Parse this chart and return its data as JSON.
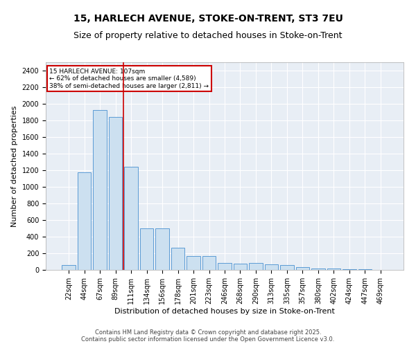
{
  "title_line1": "15, HARLECH AVENUE, STOKE-ON-TRENT, ST3 7EU",
  "title_line2": "Size of property relative to detached houses in Stoke-on-Trent",
  "xlabel": "Distribution of detached houses by size in Stoke-on-Trent",
  "ylabel": "Number of detached properties",
  "categories": [
    "22sqm",
    "44sqm",
    "67sqm",
    "89sqm",
    "111sqm",
    "134sqm",
    "156sqm",
    "178sqm",
    "201sqm",
    "223sqm",
    "246sqm",
    "268sqm",
    "290sqm",
    "313sqm",
    "335sqm",
    "357sqm",
    "380sqm",
    "402sqm",
    "424sqm",
    "447sqm",
    "469sqm"
  ],
  "values": [
    55,
    1175,
    1925,
    1840,
    1240,
    500,
    500,
    270,
    165,
    165,
    80,
    75,
    80,
    65,
    55,
    30,
    20,
    15,
    8,
    5,
    3
  ],
  "bar_color": "#cce0f0",
  "bar_edge_color": "#5b9bd5",
  "vline_x_index": 3.5,
  "vline_color": "#cc0000",
  "annotation_text": "15 HARLECH AVENUE: 107sqm\n← 62% of detached houses are smaller (4,589)\n38% of semi-detached houses are larger (2,811) →",
  "annotation_box_color": "#cc0000",
  "annotation_text_color": "#000000",
  "ylim": [
    0,
    2500
  ],
  "yticks": [
    0,
    200,
    400,
    600,
    800,
    1000,
    1200,
    1400,
    1600,
    1800,
    2000,
    2200,
    2400
  ],
  "background_color": "#e8eef5",
  "grid_color": "#ffffff",
  "footer_line1": "Contains HM Land Registry data © Crown copyright and database right 2025.",
  "footer_line2": "Contains public sector information licensed under the Open Government Licence v3.0.",
  "title_fontsize": 10,
  "subtitle_fontsize": 9,
  "annotation_fontsize": 6.5,
  "footer_fontsize": 6,
  "ylabel_fontsize": 8,
  "xlabel_fontsize": 8,
  "tick_fontsize": 7
}
